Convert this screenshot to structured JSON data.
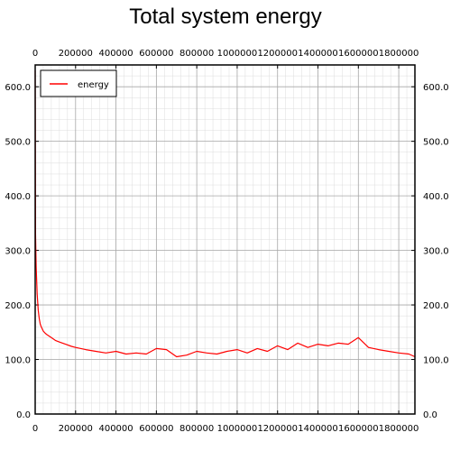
{
  "chart_data": {
    "type": "line",
    "title": "Total system energy",
    "xlabel": "",
    "ylabel": "",
    "xlim": [
      0,
      1880000
    ],
    "ylim": [
      0,
      640
    ],
    "x_ticks": [
      "0",
      "200000",
      "400000",
      "600000",
      "800000",
      "1000000",
      "1200000",
      "1400000",
      "1600000",
      "1800000"
    ],
    "y_ticks": [
      "0.0",
      "100.0",
      "200.0",
      "300.0",
      "400.0",
      "500.0",
      "600.0"
    ],
    "grid": true,
    "legend_position": "top-left",
    "series": [
      {
        "name": "energy",
        "color": "#ff0000",
        "x": [
          0,
          2000,
          5000,
          10000,
          15000,
          20000,
          25000,
          30000,
          40000,
          50000,
          60000,
          80000,
          100000,
          120000,
          150000,
          180000,
          200000,
          250000,
          300000,
          350000,
          400000,
          450000,
          500000,
          550000,
          600000,
          650000,
          700000,
          750000,
          800000,
          850000,
          900000,
          950000,
          1000000,
          1050000,
          1100000,
          1150000,
          1200000,
          1250000,
          1300000,
          1350000,
          1400000,
          1450000,
          1500000,
          1550000,
          1600000,
          1650000,
          1700000,
          1750000,
          1800000,
          1850000,
          1880000
        ],
        "y": [
          630,
          330,
          270,
          220,
          190,
          175,
          165,
          160,
          152,
          148,
          145,
          140,
          135,
          132,
          128,
          124,
          122,
          118,
          115,
          112,
          115,
          110,
          112,
          110,
          120,
          118,
          105,
          108,
          115,
          112,
          110,
          115,
          118,
          112,
          120,
          115,
          125,
          118,
          130,
          122,
          128,
          125,
          130,
          128,
          140,
          122,
          118,
          115,
          112,
          110,
          105
        ]
      }
    ]
  }
}
